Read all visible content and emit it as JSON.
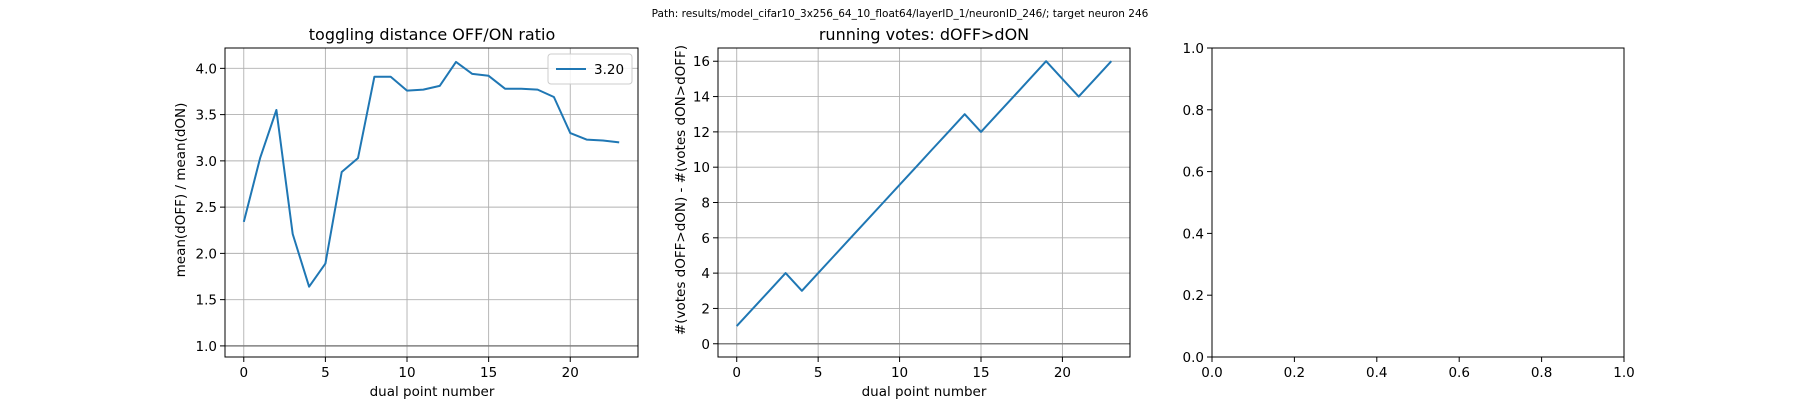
{
  "suptitle": "Path: results/model_cifar10_3x256_64_10_float64/layerID_1/neuronID_246/; target neuron 246",
  "colors": {
    "line": "#1f77b4",
    "grid": "#b0b0b0",
    "axis": "#000000",
    "refline": "#808080"
  },
  "chart_data": [
    {
      "type": "line",
      "title": "toggling distance OFF/ON ratio",
      "xlabel": "dual point number",
      "ylabel": "mean(dOFF) / mean(dON)",
      "xlim": [
        -1.15,
        24.15
      ],
      "ylim": [
        0.88,
        4.22
      ],
      "xticks": [
        0,
        5,
        10,
        15,
        20
      ],
      "yticks": [
        1.0,
        1.5,
        2.0,
        2.5,
        3.0,
        3.5,
        4.0
      ],
      "ytick_labels": [
        "1.0",
        "1.5",
        "2.0",
        "2.5",
        "3.0",
        "3.5",
        "4.0"
      ],
      "grid": true,
      "legend": {
        "placement": "upper right",
        "entries": [
          "3.20"
        ]
      },
      "hline": 1.0,
      "series": [
        {
          "name": "3.20",
          "x": [
            0,
            1,
            2,
            3,
            4,
            5,
            6,
            7,
            8,
            9,
            10,
            11,
            12,
            13,
            14,
            15,
            16,
            17,
            18,
            19,
            20,
            21,
            22,
            23
          ],
          "y": [
            2.34,
            3.03,
            3.55,
            2.21,
            1.64,
            1.89,
            2.88,
            3.03,
            3.91,
            3.91,
            3.76,
            3.77,
            3.81,
            4.07,
            3.94,
            3.92,
            3.78,
            3.78,
            3.77,
            3.69,
            3.3,
            3.23,
            3.22,
            3.2
          ]
        }
      ]
    },
    {
      "type": "line",
      "title": "running votes: dOFF>dON",
      "xlabel": "dual point number",
      "ylabel": "#(votes dOFF>dON) - #(votes dON>dOFF)",
      "xlim": [
        -1.15,
        24.15
      ],
      "ylim": [
        -0.75,
        16.75
      ],
      "xticks": [
        0,
        5,
        10,
        15,
        20
      ],
      "yticks": [
        0,
        2,
        4,
        6,
        8,
        10,
        12,
        14,
        16
      ],
      "ytick_labels": [
        "0",
        "2",
        "4",
        "6",
        "8",
        "10",
        "12",
        "14",
        "16"
      ],
      "grid": true,
      "hline": 0,
      "series": [
        {
          "x": [
            0,
            1,
            2,
            3,
            4,
            5,
            6,
            7,
            8,
            9,
            10,
            11,
            12,
            13,
            14,
            15,
            16,
            17,
            18,
            19,
            20,
            21,
            22,
            23
          ],
          "y": [
            1,
            2,
            3,
            4,
            3,
            4,
            5,
            6,
            7,
            8,
            9,
            10,
            11,
            12,
            13,
            12,
            13,
            14,
            15,
            16,
            15,
            14,
            15,
            16
          ]
        }
      ]
    },
    {
      "type": "line",
      "title": "",
      "xlabel": "",
      "ylabel": "",
      "xlim": [
        0,
        1
      ],
      "ylim": [
        0,
        1
      ],
      "xticks": [
        0,
        0.2,
        0.4,
        0.6,
        0.8,
        1.0
      ],
      "yticks": [
        0,
        0.2,
        0.4,
        0.6,
        0.8,
        1.0
      ],
      "xtick_labels": [
        "0.0",
        "0.2",
        "0.4",
        "0.6",
        "0.8",
        "1.0"
      ],
      "ytick_labels": [
        "0.0",
        "0.2",
        "0.4",
        "0.6",
        "0.8",
        "1.0"
      ],
      "grid": false,
      "series": []
    }
  ]
}
